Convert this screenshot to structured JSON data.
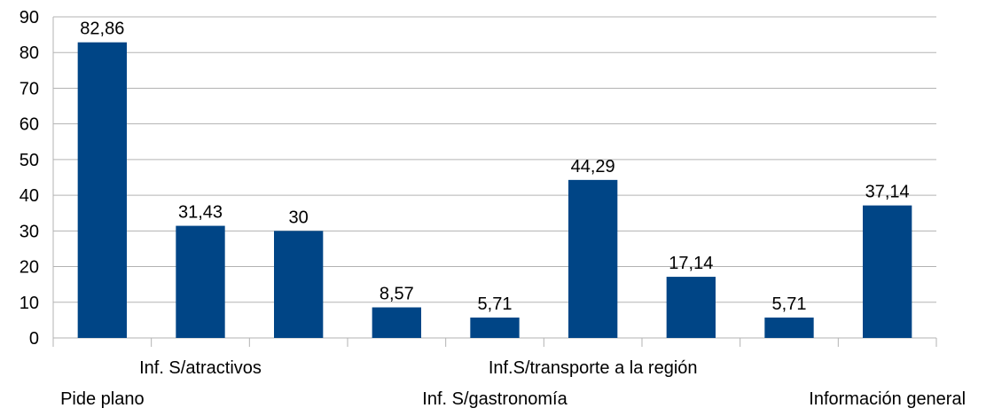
{
  "chart_data": {
    "type": "bar",
    "categories": [
      "Pide plano",
      "Inf. S/atractivos",
      "",
      "",
      "Inf. S/gastronomía",
      "Inf.S/transporte a la región",
      "",
      "",
      "Información general"
    ],
    "values": [
      82.86,
      31.43,
      30,
      8.57,
      5.71,
      44.29,
      17.14,
      5.71,
      37.14
    ],
    "data_labels": [
      "82,86",
      "31,43",
      "30",
      "8,57",
      "5,71",
      "44,29",
      "17,14",
      "5,71",
      "37,14"
    ],
    "title": "",
    "xlabel": "",
    "ylabel": "",
    "ylim": [
      0,
      90
    ],
    "yticks": [
      0,
      10,
      20,
      30,
      40,
      50,
      60,
      70,
      80,
      90
    ],
    "grid": true,
    "legend": "none",
    "bar_color": "#004586",
    "grid_color": "#b3b3b3"
  }
}
